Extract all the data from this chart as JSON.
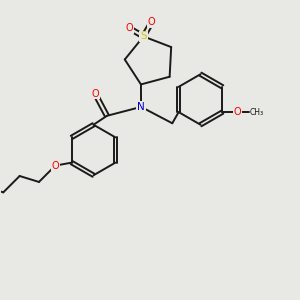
{
  "background_color": "#e8e8e4",
  "bond_color": "#1a1a1a",
  "atom_colors": {
    "O": "#ff0000",
    "N": "#0000cc",
    "S": "#cccc00",
    "C": "#1a1a1a"
  },
  "figsize": [
    3.0,
    3.0
  ],
  "dpi": 100
}
